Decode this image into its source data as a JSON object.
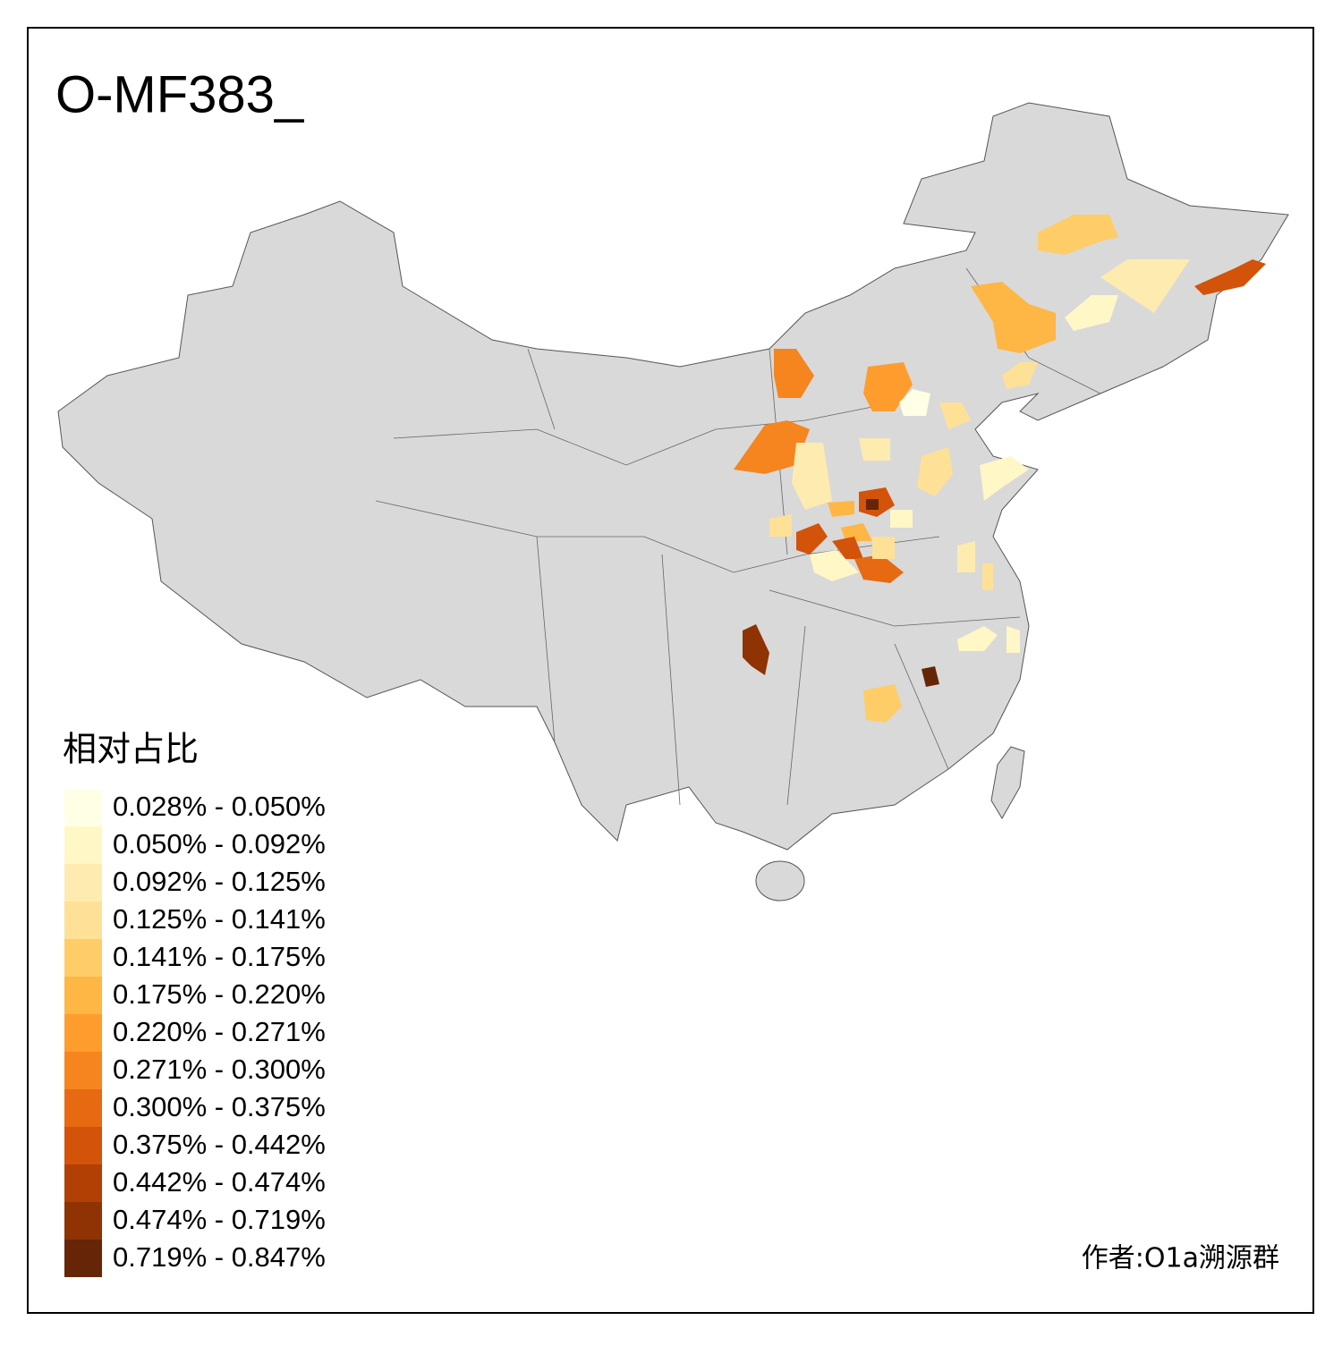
{
  "title": "O-MF383_",
  "legend": {
    "title": "相对占比",
    "items": [
      {
        "label": "0.028% - 0.050%",
        "color": "#FFFFE5"
      },
      {
        "label": "0.050% - 0.092%",
        "color": "#FFF7C6"
      },
      {
        "label": "0.092% - 0.125%",
        "color": "#FEEBB0"
      },
      {
        "label": "0.125% - 0.141%",
        "color": "#FEE197"
      },
      {
        "label": "0.141% - 0.175%",
        "color": "#FECD67"
      },
      {
        "label": "0.175% - 0.220%",
        "color": "#FEB644"
      },
      {
        "label": "0.220% - 0.271%",
        "color": "#FE9D2E"
      },
      {
        "label": "0.271% - 0.300%",
        "color": "#F6841F"
      },
      {
        "label": "0.300% - 0.375%",
        "color": "#E76A12"
      },
      {
        "label": "0.375% - 0.442%",
        "color": "#D25309"
      },
      {
        "label": "0.442% - 0.474%",
        "color": "#B23F04"
      },
      {
        "label": "0.474% - 0.719%",
        "color": "#8F3204"
      },
      {
        "label": "0.719% - 0.847%",
        "color": "#662506"
      }
    ]
  },
  "author": "作者:O1a溯源群"
}
